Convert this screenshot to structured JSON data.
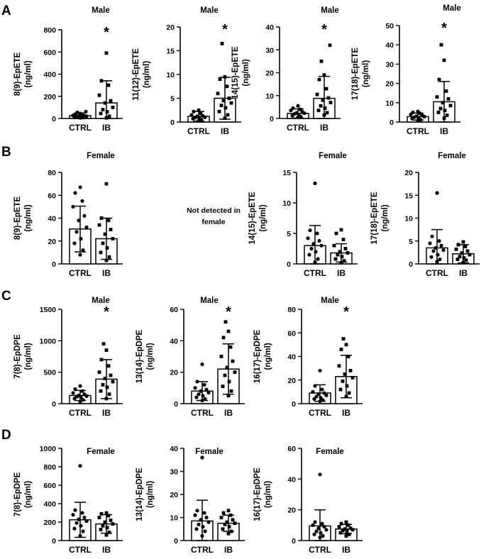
{
  "panel_letters": [
    "A",
    "B",
    "C",
    "D"
  ],
  "chart_data": [
    {
      "type": "bar",
      "panel": "A",
      "title": "Male",
      "ylabel": "8(9)-EpETE",
      "yunit": "(ng/ml)",
      "ylim": [
        0,
        800
      ],
      "yticks": [
        0,
        200,
        400,
        600,
        800
      ],
      "categories": [
        "CTRL",
        "IB"
      ],
      "values": [
        25,
        140
      ],
      "errors": [
        25,
        200
      ],
      "significance": [
        "",
        "*"
      ],
      "points": [
        [
          5,
          8,
          12,
          15,
          18,
          20,
          22,
          25,
          28,
          32,
          38,
          45,
          55,
          62
        ],
        [
          5,
          20,
          45,
          60,
          80,
          100,
          140,
          160,
          210,
          300,
          340,
          590
        ]
      ]
    },
    {
      "type": "bar",
      "panel": "A",
      "title": "Male",
      "ylabel": "11(12)-EpETE",
      "yunit": "(ng/ml)",
      "ylim": [
        0,
        20
      ],
      "yticks": [
        0,
        5,
        10,
        15,
        20
      ],
      "categories": [
        "CTRL",
        "IB"
      ],
      "values": [
        1.2,
        5.0
      ],
      "errors": [
        1.0,
        4.4
      ],
      "significance": [
        "",
        "*"
      ],
      "points": [
        [
          0.3,
          0.5,
          0.7,
          0.8,
          0.9,
          1.0,
          1.2,
          1.3,
          1.5,
          1.8,
          2.2,
          2.5
        ],
        [
          0.8,
          1.5,
          2.2,
          3.0,
          3.5,
          4.0,
          4.5,
          5.0,
          6.0,
          7.5,
          9.0,
          9.5,
          16.5
        ]
      ]
    },
    {
      "type": "bar",
      "panel": "A",
      "title": "Male",
      "ylabel": "14(15)-EpETE",
      "yunit": "(ng/ml)",
      "ylim": [
        0,
        40
      ],
      "yticks": [
        0,
        10,
        20,
        30,
        40
      ],
      "categories": [
        "CTRL",
        "IB"
      ],
      "values": [
        2.2,
        8.8
      ],
      "errors": [
        2.0,
        9.6
      ],
      "significance": [
        "",
        "*"
      ],
      "points": [
        [
          0.5,
          0.8,
          1.2,
          1.5,
          2.0,
          2.3,
          2.5,
          3.0,
          3.5,
          4.0,
          4.5,
          5.5
        ],
        [
          1.5,
          2.5,
          3.5,
          4.5,
          5.5,
          7.0,
          8.0,
          9.0,
          10.5,
          13.0,
          17.0,
          19.0,
          25.0,
          32.0
        ]
      ]
    },
    {
      "type": "bar",
      "panel": "A",
      "title": "Male",
      "ylabel": "17(18)-EpETE",
      "yunit": "(ng/ml)",
      "ylim": [
        0,
        50
      ],
      "yticks": [
        0,
        10,
        20,
        30,
        40,
        50
      ],
      "categories": [
        "CTRL",
        "IB"
      ],
      "values": [
        2.8,
        10.5
      ],
      "errors": [
        1.8,
        10.5
      ],
      "significance": [
        "",
        "*"
      ],
      "points": [
        [
          0.8,
          1.2,
          1.8,
          2.0,
          2.5,
          2.8,
          3.0,
          3.5,
          4.0,
          4.5,
          5.0,
          5.5
        ],
        [
          2.0,
          3.5,
          5.0,
          6.0,
          7.0,
          8.5,
          10.0,
          12.0,
          13.0,
          16.0,
          22.0,
          32.0,
          40.0
        ]
      ]
    },
    {
      "type": "bar",
      "panel": "B",
      "title": "Female",
      "ylabel": "8(9)-EpETE",
      "yunit": "(ng/ml)",
      "ylim": [
        0,
        80
      ],
      "yticks": [
        0,
        20,
        40,
        60,
        80
      ],
      "categories": [
        "CTRL",
        "IB"
      ],
      "values": [
        30.5,
        22.0
      ],
      "errors": [
        20.0,
        18.0
      ],
      "significance": [
        "",
        ""
      ],
      "points": [
        [
          8,
          12,
          18,
          22,
          28,
          32,
          38,
          42,
          50,
          55,
          62,
          67
        ],
        [
          3,
          6,
          10,
          14,
          18,
          22,
          26,
          30,
          34,
          38,
          40,
          70
        ]
      ]
    },
    {
      "type": "note",
      "panel": "B",
      "text": "Not detected in female"
    },
    {
      "type": "bar",
      "panel": "B",
      "title": "Female",
      "ylabel": "14(15)-EpETE",
      "yunit": "(ng/ml)",
      "ylim": [
        0,
        15
      ],
      "yticks": [
        0,
        5,
        10,
        15
      ],
      "categories": [
        "CTRL",
        "IB"
      ],
      "values": [
        3.0,
        1.8
      ],
      "errors": [
        3.3,
        1.5
      ],
      "significance": [
        "",
        ""
      ],
      "points": [
        [
          0.3,
          0.8,
          1.5,
          2.0,
          2.5,
          3.0,
          3.3,
          3.8,
          4.2,
          5.0,
          5.5,
          13.2
        ],
        [
          0.2,
          0.5,
          0.8,
          1.2,
          1.5,
          1.8,
          2.0,
          2.5,
          3.0,
          4.0,
          5.0,
          5.6
        ]
      ]
    },
    {
      "type": "bar",
      "panel": "B",
      "title": "Female",
      "ylabel": "17(18)-EpETE",
      "yunit": "(ng/ml)",
      "ylim": [
        0,
        20
      ],
      "yticks": [
        0,
        5,
        10,
        15,
        20
      ],
      "categories": [
        "CTRL",
        "IB"
      ],
      "values": [
        3.5,
        2.2
      ],
      "errors": [
        4.0,
        2.0
      ],
      "significance": [
        "",
        ""
      ],
      "points": [
        [
          0.5,
          1.0,
          1.5,
          2.0,
          2.8,
          3.0,
          3.5,
          4.0,
          4.5,
          5.0,
          6.0,
          15.5
        ],
        [
          0.3,
          0.8,
          1.0,
          1.3,
          1.6,
          2.0,
          2.4,
          2.8,
          3.2,
          3.8,
          4.2,
          4.8
        ]
      ]
    },
    {
      "type": "bar",
      "panel": "C",
      "title": "Male",
      "ylabel": "7(8)-EpDPE",
      "yunit": "(ng/ml)",
      "ylim": [
        0,
        1500
      ],
      "yticks": [
        0,
        500,
        1000,
        1500
      ],
      "categories": [
        "CTRL",
        "IB"
      ],
      "values": [
        130,
        390
      ],
      "errors": [
        80,
        310
      ],
      "significance": [
        "",
        "*"
      ],
      "points": [
        [
          30,
          60,
          80,
          100,
          110,
          120,
          130,
          150,
          170,
          200,
          230,
          280
        ],
        [
          80,
          150,
          200,
          260,
          300,
          350,
          400,
          450,
          500,
          600,
          700,
          850,
          950
        ]
      ]
    },
    {
      "type": "bar",
      "panel": "C",
      "title": "Male",
      "ylabel": "13(14)-EpDPE",
      "yunit": "(ng/ml)",
      "ylim": [
        0,
        60
      ],
      "yticks": [
        0,
        20,
        40,
        60
      ],
      "categories": [
        "CTRL",
        "IB"
      ],
      "values": [
        8,
        22
      ],
      "errors": [
        6,
        16
      ],
      "significance": [
        "",
        "*"
      ],
      "points": [
        [
          2,
          3,
          4,
          5,
          6,
          7,
          8,
          9,
          10,
          12,
          14,
          25
        ],
        [
          5,
          8,
          11,
          14,
          18,
          20,
          23,
          27,
          30,
          36,
          42,
          46,
          52
        ]
      ]
    },
    {
      "type": "bar",
      "panel": "C",
      "title": "Male",
      "ylabel": "16(17)-EpDPE",
      "yunit": "(ng/ml)",
      "ylim": [
        0,
        80
      ],
      "yticks": [
        0,
        20,
        40,
        60,
        80
      ],
      "categories": [
        "CTRL",
        "IB"
      ],
      "values": [
        9,
        23
      ],
      "errors": [
        7,
        18
      ],
      "significance": [
        "",
        "*"
      ],
      "points": [
        [
          2,
          3,
          4,
          5,
          6,
          7,
          8,
          9,
          10,
          12,
          15,
          28
        ],
        [
          6,
          9,
          12,
          15,
          19,
          22,
          25,
          28,
          32,
          40,
          46,
          50,
          55
        ]
      ]
    },
    {
      "type": "bar",
      "panel": "D",
      "title": "Female",
      "ylabel": "7(8)-EpDPE",
      "yunit": "(ng/ml)",
      "ylim": [
        0,
        1000
      ],
      "yticks": [
        0,
        200,
        400,
        600,
        800,
        1000
      ],
      "categories": [
        "CTRL",
        "IB"
      ],
      "values": [
        225,
        180
      ],
      "errors": [
        190,
        100
      ],
      "significance": [
        "",
        ""
      ],
      "points": [
        [
          50,
          100,
          130,
          160,
          190,
          210,
          230,
          250,
          280,
          300,
          330,
          810
        ],
        [
          60,
          90,
          120,
          140,
          160,
          180,
          200,
          220,
          250,
          270,
          290,
          300
        ]
      ]
    },
    {
      "type": "bar",
      "panel": "D",
      "title": "Female",
      "ylabel": "13(14)-EpDPE",
      "yunit": "(ng/ml)",
      "ylim": [
        0,
        40
      ],
      "yticks": [
        0,
        10,
        20,
        30,
        40
      ],
      "categories": [
        "CTRL",
        "IB"
      ],
      "values": [
        8.5,
        7.5
      ],
      "errors": [
        9.0,
        3.5
      ],
      "significance": [
        "",
        ""
      ],
      "points": [
        [
          2,
          4,
          5,
          6,
          7,
          8,
          9,
          10,
          11,
          12,
          13,
          36
        ],
        [
          3,
          4,
          5,
          6,
          7,
          7.5,
          8,
          9,
          10,
          11,
          12,
          13
        ]
      ]
    },
    {
      "type": "bar",
      "panel": "D",
      "title": "Female",
      "ylabel": "16(17)-EpDPE",
      "yunit": "(ng/ml)",
      "ylim": [
        0,
        60
      ],
      "yticks": [
        0,
        20,
        40,
        60
      ],
      "categories": [
        "CTRL",
        "IB"
      ],
      "values": [
        9.5,
        7.5
      ],
      "errors": [
        10.5,
        3.0
      ],
      "significance": [
        "",
        ""
      ],
      "points": [
        [
          2,
          3,
          4,
          5,
          6,
          7,
          8,
          9,
          10,
          11,
          12,
          43
        ],
        [
          3,
          4,
          5,
          6,
          6.5,
          7,
          7.5,
          8,
          9,
          10,
          11,
          12
        ]
      ]
    }
  ]
}
